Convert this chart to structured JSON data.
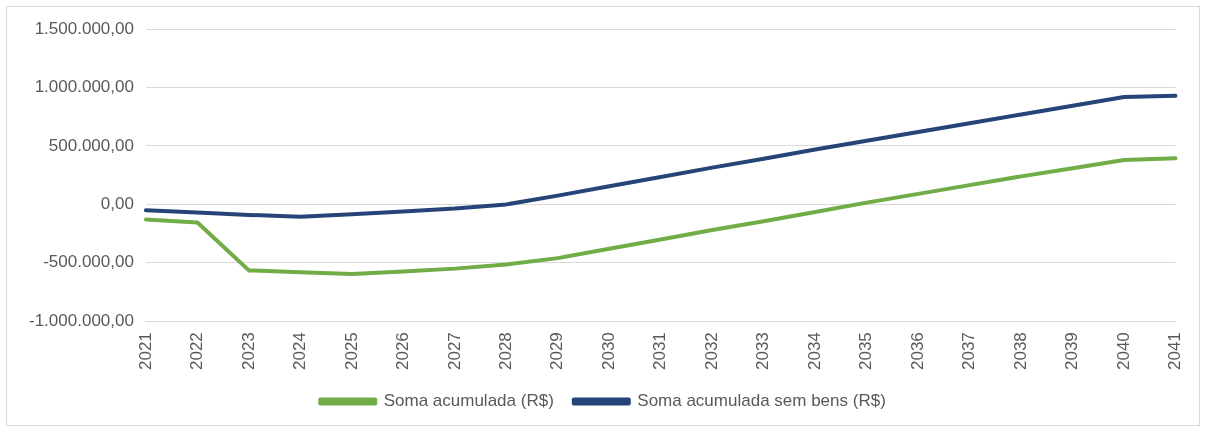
{
  "chart_data": {
    "type": "line",
    "categories": [
      "2021",
      "2022",
      "2023",
      "2024",
      "2025",
      "2026",
      "2027",
      "2028",
      "2029",
      "2030",
      "2031",
      "2032",
      "2033",
      "2034",
      "2035",
      "2036",
      "2037",
      "2038",
      "2039",
      "2040",
      "2041"
    ],
    "series": [
      {
        "name": "Soma acumulada (R$)",
        "color": "#70ad47",
        "values": [
          -130000,
          -155000,
          -565000,
          -580000,
          -595000,
          -575000,
          -550000,
          -515000,
          -460000,
          -380000,
          -300000,
          -220000,
          -145000,
          -65000,
          15000,
          90000,
          165000,
          240000,
          310000,
          380000,
          395000
        ]
      },
      {
        "name": "Soma acumulada sem bens (R$)",
        "color": "#264478",
        "values": [
          -50000,
          -70000,
          -90000,
          -105000,
          -85000,
          -60000,
          -35000,
          0,
          75000,
          155000,
          235000,
          315000,
          390000,
          470000,
          545000,
          620000,
          695000,
          770000,
          845000,
          920000,
          930000
        ]
      }
    ],
    "ylim": [
      -1000000,
      1500000
    ],
    "yticks": [
      {
        "value": -1000000,
        "label": "-1.000.000,00"
      },
      {
        "value": -500000,
        "label": "-500.000,00"
      },
      {
        "value": 0,
        "label": "0,00"
      },
      {
        "value": 500000,
        "label": "500.000,00"
      },
      {
        "value": 1000000,
        "label": "1.000.000,00"
      },
      {
        "value": 1500000,
        "label": "1.500.000,00"
      }
    ],
    "grid": "y",
    "legend": "bottom",
    "marker": "none",
    "line_style": "solid"
  }
}
